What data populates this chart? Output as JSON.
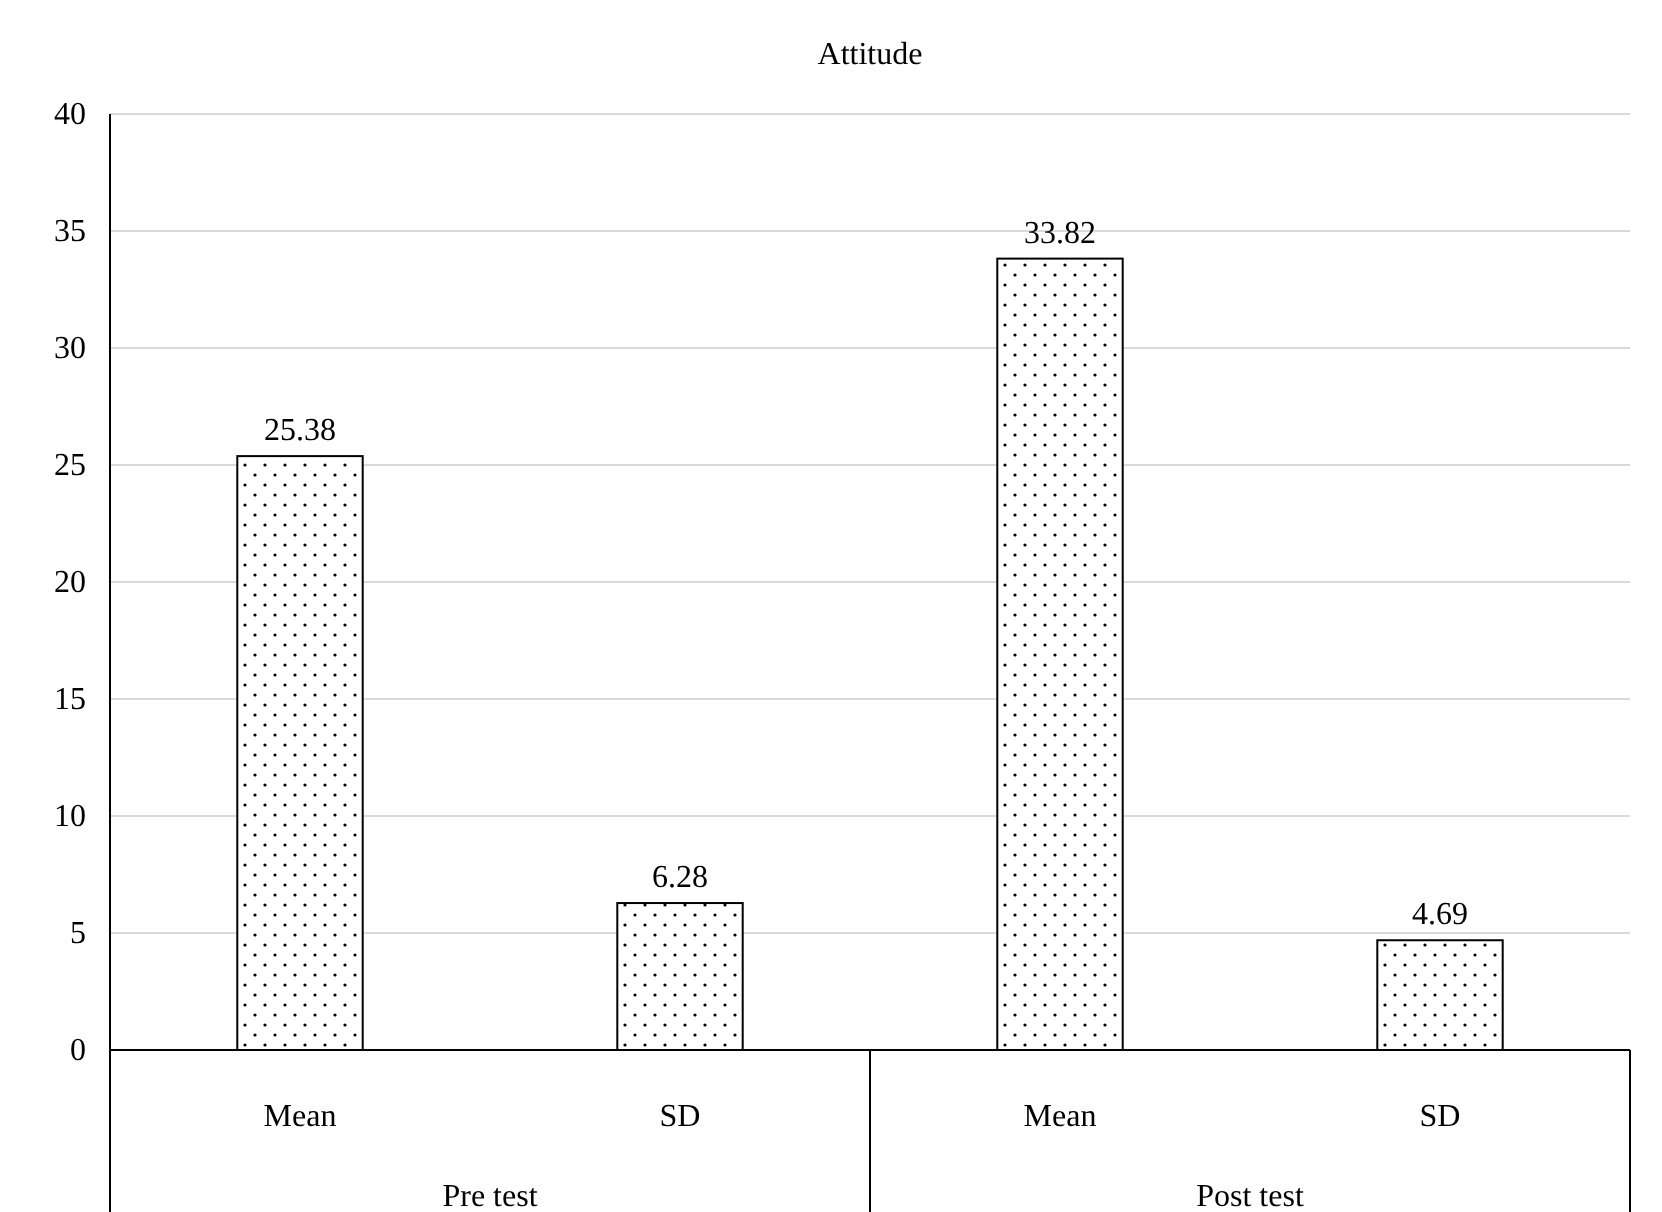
{
  "chart_data": {
    "type": "bar",
    "title": "Attitude",
    "categories": [
      "Mean",
      "SD",
      "Mean",
      "SD"
    ],
    "values": [
      25.38,
      6.28,
      33.82,
      4.69
    ],
    "color": "#000000",
    "ylim": [
      0,
      40
    ],
    "yticks": [
      0,
      5,
      10,
      15,
      20,
      25,
      30,
      35,
      40
    ],
    "grid": "y",
    "data_labels": true,
    "annotations": [
      "Pre test",
      "Post test"
    ]
  }
}
